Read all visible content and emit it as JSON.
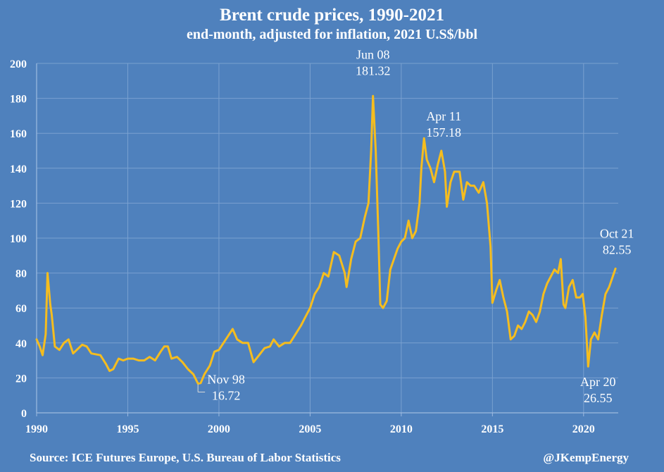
{
  "chart_data": {
    "type": "line",
    "title": "Brent crude prices, 1990-2021",
    "subtitle": "end-month, adjusted for inflation, 2021 U.S$/bbl",
    "xlabel": "",
    "ylabel": "",
    "xlim": [
      1990,
      2021.9
    ],
    "ylim": [
      0,
      200
    ],
    "yticks": [
      0,
      20,
      40,
      60,
      80,
      100,
      120,
      140,
      160,
      180,
      200
    ],
    "xticks": [
      1990,
      1995,
      2000,
      2005,
      2010,
      2015,
      2020
    ],
    "grid": true,
    "line_color": "#f5bd1f",
    "grid_color": "#7aa1d0",
    "background": "#4f81bd",
    "series": [
      {
        "points": [
          [
            1990.0,
            42
          ],
          [
            1990.17,
            38
          ],
          [
            1990.33,
            33
          ],
          [
            1990.5,
            45
          ],
          [
            1990.6,
            80
          ],
          [
            1990.75,
            62
          ],
          [
            1990.83,
            56
          ],
          [
            1991.0,
            38
          ],
          [
            1991.25,
            36
          ],
          [
            1991.5,
            40
          ],
          [
            1991.75,
            42
          ],
          [
            1992.0,
            34
          ],
          [
            1992.5,
            39
          ],
          [
            1992.75,
            38
          ],
          [
            1993.0,
            34
          ],
          [
            1993.5,
            33
          ],
          [
            1993.8,
            28
          ],
          [
            1994.0,
            24
          ],
          [
            1994.2,
            25
          ],
          [
            1994.5,
            31
          ],
          [
            1994.75,
            30
          ],
          [
            1995.0,
            31
          ],
          [
            1995.3,
            31
          ],
          [
            1995.6,
            30
          ],
          [
            1995.9,
            30
          ],
          [
            1996.2,
            32
          ],
          [
            1996.5,
            30
          ],
          [
            1996.8,
            35
          ],
          [
            1997.0,
            38
          ],
          [
            1997.2,
            38
          ],
          [
            1997.4,
            31
          ],
          [
            1997.7,
            32
          ],
          [
            1998.0,
            29
          ],
          [
            1998.3,
            25
          ],
          [
            1998.6,
            22
          ],
          [
            1998.85,
            16.72
          ],
          [
            1999.0,
            17
          ],
          [
            1999.2,
            22
          ],
          [
            1999.5,
            27
          ],
          [
            1999.75,
            35
          ],
          [
            2000.0,
            36
          ],
          [
            2000.25,
            40
          ],
          [
            2000.5,
            44
          ],
          [
            2000.75,
            48
          ],
          [
            2001.0,
            42
          ],
          [
            2001.3,
            40
          ],
          [
            2001.6,
            40
          ],
          [
            2001.9,
            29
          ],
          [
            2002.2,
            33
          ],
          [
            2002.5,
            37
          ],
          [
            2002.8,
            38
          ],
          [
            2003.0,
            42
          ],
          [
            2003.3,
            38
          ],
          [
            2003.6,
            40
          ],
          [
            2003.9,
            40
          ],
          [
            2004.2,
            45
          ],
          [
            2004.5,
            50
          ],
          [
            2004.75,
            55
          ],
          [
            2005.0,
            60
          ],
          [
            2005.25,
            68
          ],
          [
            2005.5,
            72
          ],
          [
            2005.75,
            80
          ],
          [
            2006.0,
            78
          ],
          [
            2006.3,
            92
          ],
          [
            2006.6,
            90
          ],
          [
            2006.9,
            80
          ],
          [
            2007.0,
            72
          ],
          [
            2007.25,
            88
          ],
          [
            2007.5,
            98
          ],
          [
            2007.75,
            100
          ],
          [
            2008.0,
            112
          ],
          [
            2008.2,
            120
          ],
          [
            2008.35,
            150
          ],
          [
            2008.45,
            181.32
          ],
          [
            2008.6,
            150
          ],
          [
            2008.75,
            100
          ],
          [
            2008.85,
            62
          ],
          [
            2009.0,
            60
          ],
          [
            2009.2,
            64
          ],
          [
            2009.4,
            82
          ],
          [
            2009.6,
            88
          ],
          [
            2009.8,
            94
          ],
          [
            2010.0,
            98
          ],
          [
            2010.2,
            100
          ],
          [
            2010.4,
            110
          ],
          [
            2010.6,
            100
          ],
          [
            2010.8,
            104
          ],
          [
            2011.0,
            120
          ],
          [
            2011.1,
            140
          ],
          [
            2011.25,
            157.18
          ],
          [
            2011.4,
            145
          ],
          [
            2011.6,
            140
          ],
          [
            2011.8,
            132
          ],
          [
            2012.0,
            142
          ],
          [
            2012.2,
            150
          ],
          [
            2012.4,
            138
          ],
          [
            2012.5,
            118
          ],
          [
            2012.7,
            132
          ],
          [
            2012.9,
            138
          ],
          [
            2013.2,
            138
          ],
          [
            2013.4,
            122
          ],
          [
            2013.6,
            132
          ],
          [
            2013.8,
            130
          ],
          [
            2014.0,
            130
          ],
          [
            2014.25,
            126
          ],
          [
            2014.5,
            132
          ],
          [
            2014.7,
            120
          ],
          [
            2014.9,
            95
          ],
          [
            2015.0,
            63
          ],
          [
            2015.2,
            70
          ],
          [
            2015.4,
            76
          ],
          [
            2015.6,
            66
          ],
          [
            2015.8,
            58
          ],
          [
            2016.0,
            42
          ],
          [
            2016.2,
            44
          ],
          [
            2016.4,
            50
          ],
          [
            2016.6,
            48
          ],
          [
            2016.8,
            52
          ],
          [
            2017.0,
            58
          ],
          [
            2017.2,
            56
          ],
          [
            2017.4,
            52
          ],
          [
            2017.6,
            58
          ],
          [
            2017.8,
            68
          ],
          [
            2018.0,
            74
          ],
          [
            2018.2,
            78
          ],
          [
            2018.4,
            82
          ],
          [
            2018.6,
            80
          ],
          [
            2018.75,
            88
          ],
          [
            2018.9,
            62
          ],
          [
            2019.0,
            60
          ],
          [
            2019.2,
            72
          ],
          [
            2019.4,
            76
          ],
          [
            2019.6,
            66
          ],
          [
            2019.8,
            66
          ],
          [
            2019.95,
            68
          ],
          [
            2020.1,
            55
          ],
          [
            2020.25,
            26.55
          ],
          [
            2020.4,
            42
          ],
          [
            2020.6,
            46
          ],
          [
            2020.8,
            42
          ],
          [
            2021.0,
            56
          ],
          [
            2021.2,
            68
          ],
          [
            2021.4,
            72
          ],
          [
            2021.6,
            78
          ],
          [
            2021.75,
            82.55
          ]
        ]
      }
    ],
    "annotations": [
      {
        "label": "Jun 08",
        "value": "181.32",
        "x": 2008.45,
        "y": 181.32
      },
      {
        "label": "Apr 11",
        "value": "157.18",
        "x": 2011.25,
        "y": 157.18
      },
      {
        "label": "Nov 98",
        "value": "16.72",
        "x": 1998.85,
        "y": 16.72
      },
      {
        "label": "Apr 20",
        "value": "26.55",
        "x": 2020.25,
        "y": 26.55
      },
      {
        "label": "Oct 21",
        "value": "82.55",
        "x": 2021.75,
        "y": 82.55
      }
    ]
  },
  "footer": {
    "source": "Source: ICE Futures Europe, U.S. Bureau of Labor Statistics",
    "handle": "@JKempEnergy"
  }
}
